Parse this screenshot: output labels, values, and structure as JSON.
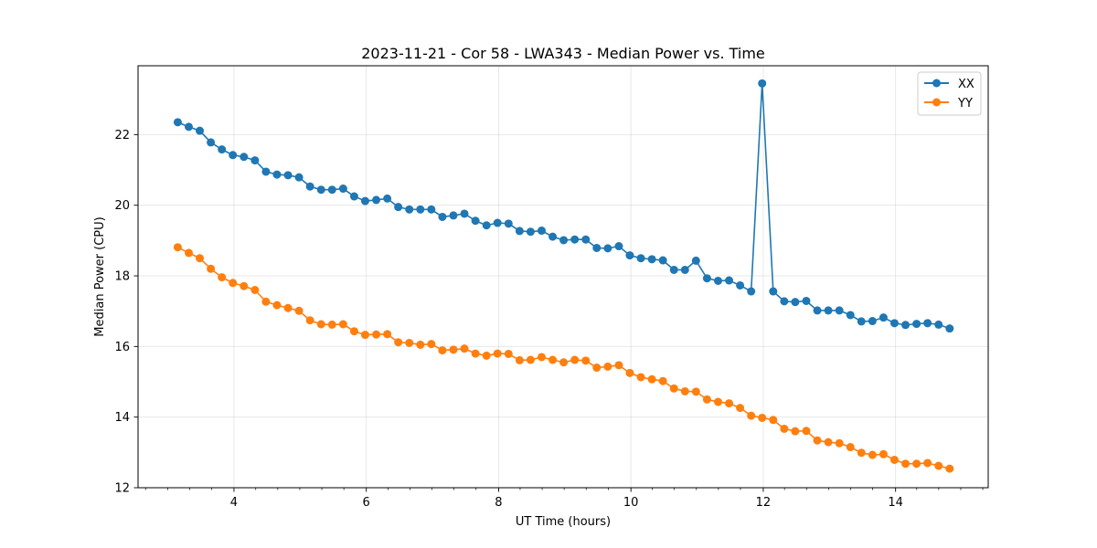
{
  "chart_data": {
    "type": "line",
    "title": "2023-11-21 - Cor 58 - LWA343 - Median Power vs. Time",
    "xlabel": "UT Time (hours)",
    "ylabel": "Median Power (CPU)",
    "xlim": [
      2.55,
      15.4
    ],
    "ylim": [
      12,
      23.95
    ],
    "xticks": [
      4,
      6,
      8,
      10,
      12,
      14
    ],
    "xtick_labels": [
      "4",
      "6",
      "8",
      "10",
      "12",
      "14"
    ],
    "xminor_step": 0.333,
    "yticks": [
      12,
      14,
      16,
      18,
      20,
      22
    ],
    "ytick_labels": [
      "12",
      "14",
      "16",
      "18",
      "20",
      "22"
    ],
    "grid": true,
    "legend_position": "top-right",
    "x": [
      3.15,
      3.317,
      3.483,
      3.65,
      3.817,
      3.983,
      4.15,
      4.317,
      4.483,
      4.65,
      4.817,
      4.983,
      5.15,
      5.317,
      5.483,
      5.65,
      5.817,
      5.983,
      6.15,
      6.317,
      6.483,
      6.65,
      6.817,
      6.983,
      7.15,
      7.317,
      7.483,
      7.65,
      7.817,
      7.983,
      8.15,
      8.317,
      8.483,
      8.65,
      8.817,
      8.983,
      9.15,
      9.317,
      9.483,
      9.65,
      9.817,
      9.983,
      10.15,
      10.317,
      10.483,
      10.65,
      10.817,
      10.983,
      11.15,
      11.317,
      11.483,
      11.65,
      11.817,
      11.983,
      12.15,
      12.317,
      12.483,
      12.65,
      12.817,
      12.983,
      13.15,
      13.317,
      13.483,
      13.65,
      13.817,
      13.983,
      14.15,
      14.317,
      14.483,
      14.65,
      14.817
    ],
    "series": [
      {
        "name": "XX",
        "color": "#1f77b4",
        "values": [
          22.35,
          22.22,
          22.11,
          21.78,
          21.58,
          21.42,
          21.37,
          21.27,
          20.95,
          20.87,
          20.85,
          20.79,
          20.53,
          20.44,
          20.44,
          20.47,
          20.25,
          20.12,
          20.15,
          20.19,
          19.95,
          19.88,
          19.88,
          19.88,
          19.67,
          19.71,
          19.76,
          19.56,
          19.43,
          19.5,
          19.48,
          19.27,
          19.25,
          19.28,
          19.11,
          19.01,
          19.03,
          19.03,
          18.79,
          18.78,
          18.84,
          18.58,
          18.5,
          18.47,
          18.44,
          18.17,
          18.17,
          18.43,
          17.93,
          17.86,
          17.87,
          17.73,
          17.56,
          23.45,
          17.56,
          17.28,
          17.26,
          17.29,
          17.02,
          17.02,
          17.02,
          16.89,
          16.71,
          16.72,
          16.82,
          16.66,
          16.61,
          16.64,
          16.66,
          16.62,
          16.51
        ]
      },
      {
        "name": "YY",
        "color": "#ff7f0e",
        "values": [
          18.81,
          18.65,
          18.5,
          18.2,
          17.96,
          17.8,
          17.71,
          17.6,
          17.27,
          17.17,
          17.09,
          17.01,
          16.74,
          16.63,
          16.62,
          16.63,
          16.43,
          16.33,
          16.34,
          16.35,
          16.12,
          16.1,
          16.05,
          16.07,
          15.89,
          15.91,
          15.94,
          15.8,
          15.74,
          15.8,
          15.79,
          15.61,
          15.62,
          15.7,
          15.62,
          15.55,
          15.62,
          15.6,
          15.4,
          15.43,
          15.47,
          15.25,
          15.13,
          15.07,
          15.02,
          14.81,
          14.73,
          14.72,
          14.5,
          14.43,
          14.39,
          14.26,
          14.04,
          13.98,
          13.92,
          13.67,
          13.6,
          13.61,
          13.34,
          13.29,
          13.26,
          13.15,
          12.99,
          12.93,
          12.95,
          12.79,
          12.68,
          12.68,
          12.7,
          12.62,
          12.54
        ]
      }
    ]
  }
}
